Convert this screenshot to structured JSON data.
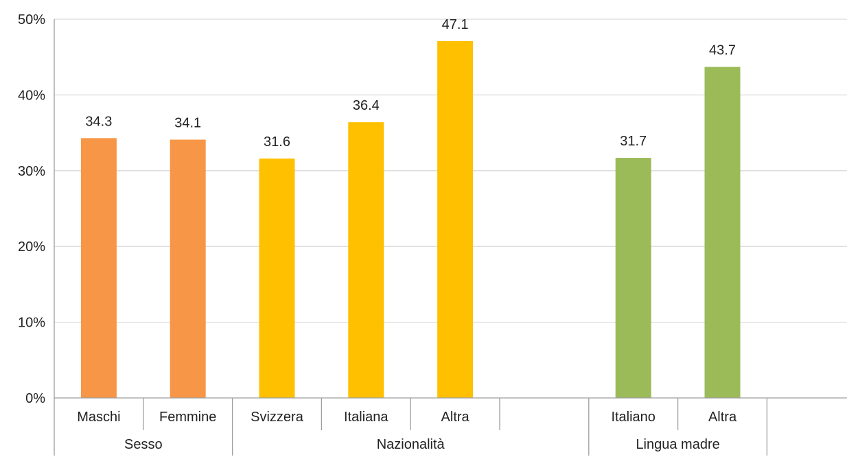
{
  "chart_data": {
    "type": "bar",
    "title": "",
    "xlabel": "",
    "ylabel": "",
    "ylim": [
      0,
      50
    ],
    "yticks": [
      0,
      10,
      20,
      30,
      40,
      50
    ],
    "ytick_labels": [
      "0%",
      "10%",
      "20%",
      "30%",
      "40%",
      "50%"
    ],
    "grid": true,
    "legend": "none",
    "groups": [
      {
        "name": "Sesso",
        "color": "#F79646",
        "categories": [
          "Maschi",
          "Femmine"
        ],
        "values": [
          34.3,
          34.1
        ],
        "value_labels": [
          "34.3",
          "34.1"
        ]
      },
      {
        "name": "Nazionalità",
        "color": "#FFC000",
        "categories": [
          "Svizzera",
          "Italiana",
          "Altra",
          ""
        ],
        "values": [
          31.6,
          36.4,
          47.1,
          null
        ],
        "value_labels": [
          "31.6",
          "36.4",
          "47.1",
          ""
        ]
      },
      {
        "name": "Lingua madre",
        "color": "#9BBB59",
        "categories": [
          "Italiano",
          "Altra"
        ],
        "values": [
          31.7,
          43.7
        ],
        "value_labels": [
          "31.7",
          "43.7"
        ]
      }
    ]
  },
  "colors": {
    "axis": "#9E9E9E",
    "grid": "#D9D9D9",
    "text": "#222222"
  }
}
